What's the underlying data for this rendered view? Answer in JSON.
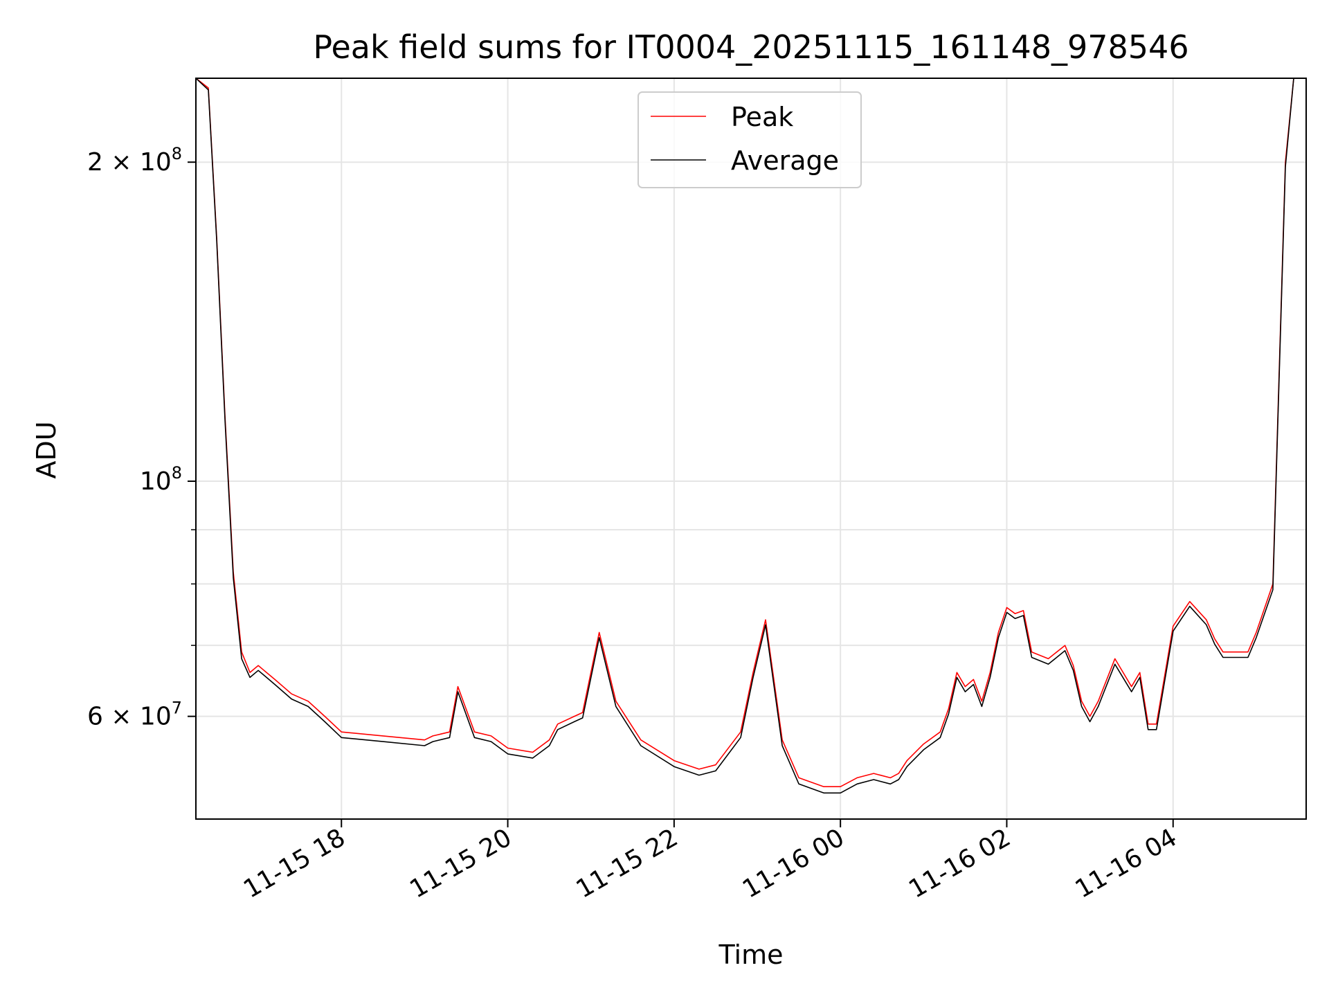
{
  "chart_data": {
    "type": "line",
    "title": "Peak field sums for IT0004_20251115_161148_978546",
    "xlabel": "Time",
    "ylabel": "ADU",
    "yscale": "log",
    "ylim": [
      48000000,
      240000000
    ],
    "xlim_hours": [
      16.25,
      29.6
    ],
    "grid": true,
    "legend_position": "upper center",
    "x_ticks": [
      {
        "hour": 18,
        "label": "11-15 18"
      },
      {
        "hour": 20,
        "label": "11-15 20"
      },
      {
        "hour": 22,
        "label": "11-15 22"
      },
      {
        "hour": 24,
        "label": "11-16 00"
      },
      {
        "hour": 26,
        "label": "11-16 02"
      },
      {
        "hour": 28,
        "label": "11-16 04"
      }
    ],
    "y_major_ticks": [
      {
        "value": 60000000,
        "mantissa": "6",
        "exponent": "7"
      },
      {
        "value": 100000000,
        "mantissa": "",
        "exponent": "8"
      },
      {
        "value": 200000000,
        "mantissa": "2",
        "exponent": "8"
      }
    ],
    "y_minor_ticks": [
      70000000,
      80000000,
      90000000
    ],
    "series": [
      {
        "name": "Peak",
        "color": "#ff0000",
        "x": [
          16.25,
          16.4,
          16.5,
          16.6,
          16.7,
          16.8,
          16.9,
          17.0,
          17.2,
          17.4,
          17.6,
          17.8,
          18.0,
          18.5,
          19.0,
          19.1,
          19.3,
          19.4,
          19.6,
          19.8,
          20.0,
          20.3,
          20.5,
          20.6,
          20.8,
          20.9,
          21.1,
          21.3,
          21.6,
          22.0,
          22.3,
          22.5,
          22.8,
          22.95,
          23.1,
          23.3,
          23.5,
          23.8,
          24.0,
          24.2,
          24.4,
          24.6,
          24.7,
          24.8,
          25.0,
          25.2,
          25.3,
          25.4,
          25.5,
          25.6,
          25.7,
          25.8,
          25.9,
          26.0,
          26.1,
          26.2,
          26.3,
          26.5,
          26.7,
          26.8,
          26.9,
          27.0,
          27.1,
          27.3,
          27.5,
          27.6,
          27.7,
          27.8,
          28.0,
          28.2,
          28.4,
          28.5,
          28.6,
          28.9,
          29.0,
          29.2,
          29.35,
          29.45
        ],
        "values": [
          240000000,
          235000000,
          170000000,
          115000000,
          82000000,
          69000000,
          66000000,
          67000000,
          65000000,
          63000000,
          62000000,
          60000000,
          58000000,
          57500000,
          57000000,
          57500000,
          58000000,
          64000000,
          58000000,
          57500000,
          56000000,
          55500000,
          57000000,
          59000000,
          60000000,
          60500000,
          72000000,
          62000000,
          57000000,
          54500000,
          53500000,
          54000000,
          58000000,
          66000000,
          74000000,
          57000000,
          52500000,
          51500000,
          51500000,
          52500000,
          53000000,
          52500000,
          53000000,
          54500000,
          56500000,
          58000000,
          61000000,
          66000000,
          64000000,
          65000000,
          62000000,
          66000000,
          72000000,
          76000000,
          75000000,
          75500000,
          69000000,
          68000000,
          70000000,
          67000000,
          62000000,
          60000000,
          62000000,
          68000000,
          64000000,
          66000000,
          59000000,
          59000000,
          73000000,
          77000000,
          74000000,
          71000000,
          69000000,
          69000000,
          72000000,
          80000000,
          200000000,
          240000000
        ]
      },
      {
        "name": "Average",
        "color": "#000000",
        "x": [
          16.25,
          16.4,
          16.5,
          16.6,
          16.7,
          16.8,
          16.9,
          17.0,
          17.2,
          17.4,
          17.6,
          17.8,
          18.0,
          18.5,
          19.0,
          19.1,
          19.3,
          19.4,
          19.6,
          19.8,
          20.0,
          20.3,
          20.5,
          20.6,
          20.8,
          20.9,
          21.1,
          21.3,
          21.6,
          22.0,
          22.3,
          22.5,
          22.8,
          22.95,
          23.1,
          23.3,
          23.5,
          23.8,
          24.0,
          24.2,
          24.4,
          24.6,
          24.7,
          24.8,
          25.0,
          25.2,
          25.3,
          25.4,
          25.5,
          25.6,
          25.7,
          25.8,
          25.9,
          26.0,
          26.1,
          26.2,
          26.3,
          26.5,
          26.7,
          26.8,
          26.9,
          27.0,
          27.1,
          27.3,
          27.5,
          27.6,
          27.7,
          27.8,
          28.0,
          28.2,
          28.4,
          28.5,
          28.6,
          28.9,
          29.0,
          29.2,
          29.35,
          29.45
        ],
        "values": [
          240000000,
          234000000,
          169000000,
          114000000,
          81000000,
          68000000,
          65300000,
          66300000,
          64300000,
          62300000,
          61300000,
          59300000,
          57300000,
          56800000,
          56300000,
          56800000,
          57300000,
          63300000,
          57300000,
          56800000,
          55300000,
          54800000,
          56300000,
          58300000,
          59300000,
          59800000,
          71200000,
          61300000,
          56300000,
          53800000,
          52800000,
          53300000,
          57300000,
          65300000,
          73200000,
          56300000,
          51800000,
          50800000,
          50800000,
          51800000,
          52300000,
          51800000,
          52300000,
          53800000,
          55800000,
          57300000,
          60300000,
          65300000,
          63300000,
          64300000,
          61300000,
          65300000,
          71200000,
          75200000,
          74200000,
          74700000,
          68200000,
          67200000,
          69200000,
          66300000,
          61300000,
          59300000,
          61300000,
          67200000,
          63300000,
          65300000,
          58300000,
          58300000,
          72200000,
          76200000,
          73200000,
          70200000,
          68200000,
          68200000,
          71200000,
          79000000,
          198000000,
          240000000
        ]
      }
    ]
  }
}
